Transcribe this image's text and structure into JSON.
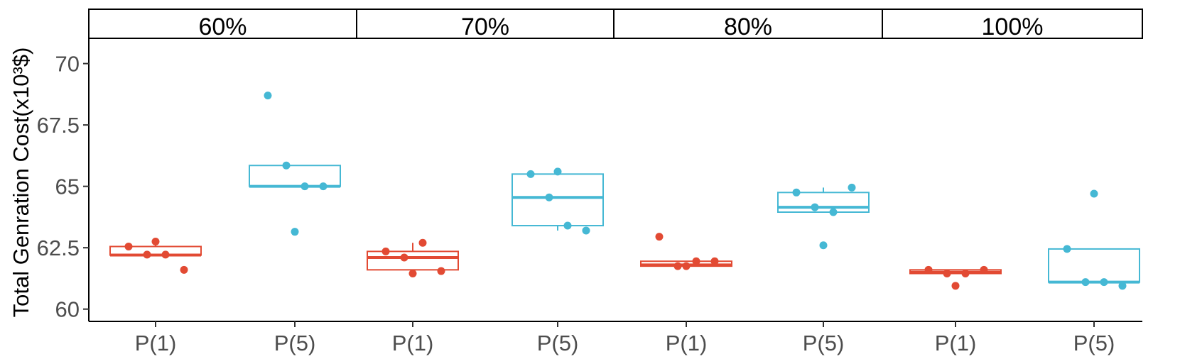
{
  "chart_data": {
    "type": "box",
    "ylabel": "Total Genration Cost(x10³$)",
    "ylim": [
      59.5,
      71.0
    ],
    "y_ticks": [
      60,
      62.5,
      65,
      67.5,
      70
    ],
    "y_tick_labels": [
      "60",
      "62.5",
      "65",
      "67.5",
      "70"
    ],
    "grid": false,
    "colors": {
      "P(1)": "#e24a33",
      "P(5)": "#45b8d4"
    },
    "facets": [
      {
        "label": "60%",
        "groups": [
          {
            "name": "P(1)",
            "box": {
              "q1": 62.2,
              "median": 62.2,
              "q3": 62.55,
              "whisker_low": 62.2,
              "whisker_high": 62.75
            },
            "points": [
              62.55,
              62.22,
              62.22,
              61.6,
              62.75
            ]
          },
          {
            "name": "P(5)",
            "box": {
              "q1": 65.0,
              "median": 65.0,
              "q3": 65.85,
              "whisker_low": 65.0,
              "whisker_high": 65.85
            },
            "points": [
              68.7,
              65.85,
              65.0,
              65.0,
              63.15
            ]
          }
        ]
      },
      {
        "label": "70%",
        "groups": [
          {
            "name": "P(1)",
            "box": {
              "q1": 61.6,
              "median": 62.1,
              "q3": 62.35,
              "whisker_low": 61.45,
              "whisker_high": 62.7
            },
            "points": [
              62.35,
              62.1,
              62.7,
              61.55,
              61.45
            ]
          },
          {
            "name": "P(5)",
            "box": {
              "q1": 63.4,
              "median": 64.55,
              "q3": 65.5,
              "whisker_low": 63.2,
              "whisker_high": 65.6
            },
            "points": [
              65.5,
              64.55,
              63.4,
              63.2,
              65.6
            ]
          }
        ]
      },
      {
        "label": "80%",
        "groups": [
          {
            "name": "P(1)",
            "box": {
              "q1": 61.75,
              "median": 61.8,
              "q3": 61.95,
              "whisker_low": 61.75,
              "whisker_high": 61.95
            },
            "points": [
              62.95,
              61.75,
              61.95,
              61.95,
              61.75
            ]
          },
          {
            "name": "P(5)",
            "box": {
              "q1": 63.95,
              "median": 64.15,
              "q3": 64.75,
              "whisker_low": 63.95,
              "whisker_high": 64.95
            },
            "points": [
              64.75,
              64.15,
              63.95,
              64.95,
              62.6
            ]
          }
        ]
      },
      {
        "label": "100%",
        "groups": [
          {
            "name": "P(1)",
            "box": {
              "q1": 61.45,
              "median": 61.5,
              "q3": 61.6,
              "whisker_low": 61.45,
              "whisker_high": 61.6
            },
            "points": [
              61.6,
              61.45,
              61.45,
              61.6,
              60.95
            ]
          },
          {
            "name": "P(5)",
            "box": {
              "q1": 61.1,
              "median": 61.1,
              "q3": 62.45,
              "whisker_low": 61.1,
              "whisker_high": 62.45
            },
            "points": [
              62.45,
              61.1,
              61.1,
              60.95,
              64.7
            ]
          }
        ]
      }
    ]
  }
}
